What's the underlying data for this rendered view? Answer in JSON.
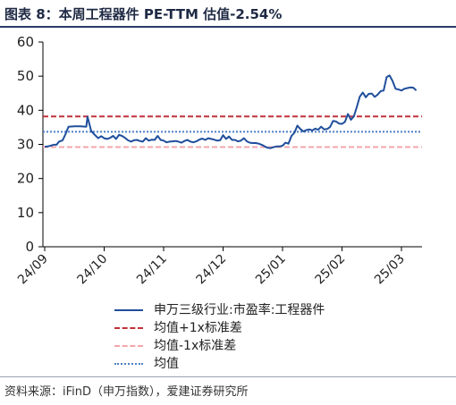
{
  "title": "图表 8：本周工程器件 PE-TTM 估值-2.54%",
  "source": "资料来源：iFinD（申万指数），爱建证券研究所",
  "chart_data": {
    "type": "line",
    "ylim": [
      0,
      60
    ],
    "yticks": [
      0,
      10,
      20,
      30,
      40,
      50,
      60
    ],
    "xticks": [
      "24/09",
      "24/10",
      "24/11",
      "24/12",
      "25/01",
      "25/02",
      "25/03"
    ],
    "legend_position": "bottom",
    "series": [
      {
        "name": "申万三级行业:市盈率:工程器件",
        "color": "#1f4e9c",
        "style": "solid",
        "points": [
          [
            0,
            29.3
          ],
          [
            0.05,
            29.4
          ],
          [
            0.1,
            29.6
          ],
          [
            0.15,
            29.9
          ],
          [
            0.2,
            29.9
          ],
          [
            0.24,
            30.8
          ],
          [
            0.3,
            31.2
          ],
          [
            0.35,
            33.0
          ],
          [
            0.4,
            35.2
          ],
          [
            0.5,
            35.3
          ],
          [
            0.6,
            35.3
          ],
          [
            0.7,
            35.2
          ],
          [
            0.72,
            38.1
          ],
          [
            0.78,
            34.0
          ],
          [
            0.82,
            33.2
          ],
          [
            0.9,
            31.8
          ],
          [
            0.95,
            32.4
          ],
          [
            1.0,
            31.8
          ],
          [
            1.05,
            31.6
          ],
          [
            1.1,
            31.9
          ],
          [
            1.15,
            32.5
          ],
          [
            1.2,
            31.6
          ],
          [
            1.25,
            32.8
          ],
          [
            1.3,
            32.5
          ],
          [
            1.35,
            31.9
          ],
          [
            1.4,
            31.2
          ],
          [
            1.45,
            30.8
          ],
          [
            1.5,
            31.2
          ],
          [
            1.55,
            31.3
          ],
          [
            1.6,
            31.0
          ],
          [
            1.65,
            30.8
          ],
          [
            1.7,
            31.8
          ],
          [
            1.75,
            31.1
          ],
          [
            1.8,
            31.4
          ],
          [
            1.85,
            31.3
          ],
          [
            1.9,
            32.5
          ],
          [
            1.95,
            31.3
          ],
          [
            2.0,
            31.1
          ],
          [
            2.05,
            30.6
          ],
          [
            2.1,
            30.8
          ],
          [
            2.15,
            30.9
          ],
          [
            2.2,
            31.0
          ],
          [
            2.25,
            30.8
          ],
          [
            2.3,
            30.5
          ],
          [
            2.35,
            31.0
          ],
          [
            2.4,
            31.3
          ],
          [
            2.45,
            30.8
          ],
          [
            2.5,
            30.6
          ],
          [
            2.55,
            30.9
          ],
          [
            2.6,
            31.4
          ],
          [
            2.65,
            31.7
          ],
          [
            2.7,
            31.3
          ],
          [
            2.75,
            31.8
          ],
          [
            2.8,
            31.6
          ],
          [
            2.85,
            31.4
          ],
          [
            2.9,
            31.1
          ],
          [
            2.95,
            31.2
          ],
          [
            3.0,
            32.7
          ],
          [
            3.05,
            31.6
          ],
          [
            3.1,
            32.3
          ],
          [
            3.15,
            31.3
          ],
          [
            3.2,
            31.3
          ],
          [
            3.25,
            30.9
          ],
          [
            3.3,
            31.1
          ],
          [
            3.35,
            31.8
          ],
          [
            3.4,
            30.9
          ],
          [
            3.45,
            30.5
          ],
          [
            3.5,
            30.4
          ],
          [
            3.55,
            30.4
          ],
          [
            3.6,
            30.2
          ],
          [
            3.65,
            29.9
          ],
          [
            3.7,
            29.4
          ],
          [
            3.75,
            29.0
          ],
          [
            3.8,
            28.9
          ],
          [
            3.85,
            29.2
          ],
          [
            3.9,
            29.4
          ],
          [
            3.95,
            29.4
          ],
          [
            4.0,
            29.6
          ],
          [
            4.05,
            30.5
          ],
          [
            4.1,
            30.2
          ],
          [
            4.15,
            32.5
          ],
          [
            4.2,
            33.4
          ],
          [
            4.25,
            35.5
          ],
          [
            4.3,
            34.5
          ],
          [
            4.35,
            33.8
          ],
          [
            4.4,
            34.2
          ],
          [
            4.45,
            34.4
          ],
          [
            4.5,
            34.1
          ],
          [
            4.55,
            34.6
          ],
          [
            4.6,
            34.3
          ],
          [
            4.65,
            35.2
          ],
          [
            4.7,
            34.4
          ],
          [
            4.75,
            34.5
          ],
          [
            4.8,
            35.1
          ],
          [
            4.85,
            36.9
          ],
          [
            4.9,
            36.7
          ],
          [
            4.95,
            36.1
          ],
          [
            5.0,
            36.0
          ],
          [
            5.05,
            36.6
          ],
          [
            5.1,
            38.9
          ],
          [
            5.15,
            37.2
          ],
          [
            5.2,
            38.2
          ],
          [
            5.25,
            41.0
          ],
          [
            5.3,
            44.0
          ],
          [
            5.35,
            45.2
          ],
          [
            5.4,
            43.8
          ],
          [
            5.45,
            44.8
          ],
          [
            5.5,
            44.9
          ],
          [
            5.55,
            43.9
          ],
          [
            5.6,
            44.6
          ],
          [
            5.65,
            45.6
          ],
          [
            5.7,
            45.8
          ],
          [
            5.75,
            49.7
          ],
          [
            5.8,
            50.2
          ],
          [
            5.85,
            48.6
          ],
          [
            5.9,
            46.3
          ],
          [
            5.95,
            46.1
          ],
          [
            6.0,
            45.8
          ],
          [
            6.05,
            46.3
          ],
          [
            6.1,
            46.5
          ],
          [
            6.15,
            46.7
          ],
          [
            6.2,
            46.6
          ],
          [
            6.25,
            45.8
          ]
        ]
      },
      {
        "name": "均值+1x标准差",
        "color": "#c0323b",
        "style": "dashed",
        "value": 38.2
      },
      {
        "name": "均值-1x标准差",
        "color": "#f2a7ad",
        "style": "dashed",
        "value": 29.2
      },
      {
        "name": "均值",
        "color": "#4d7fc4",
        "style": "dotted",
        "value": 33.7
      }
    ]
  }
}
